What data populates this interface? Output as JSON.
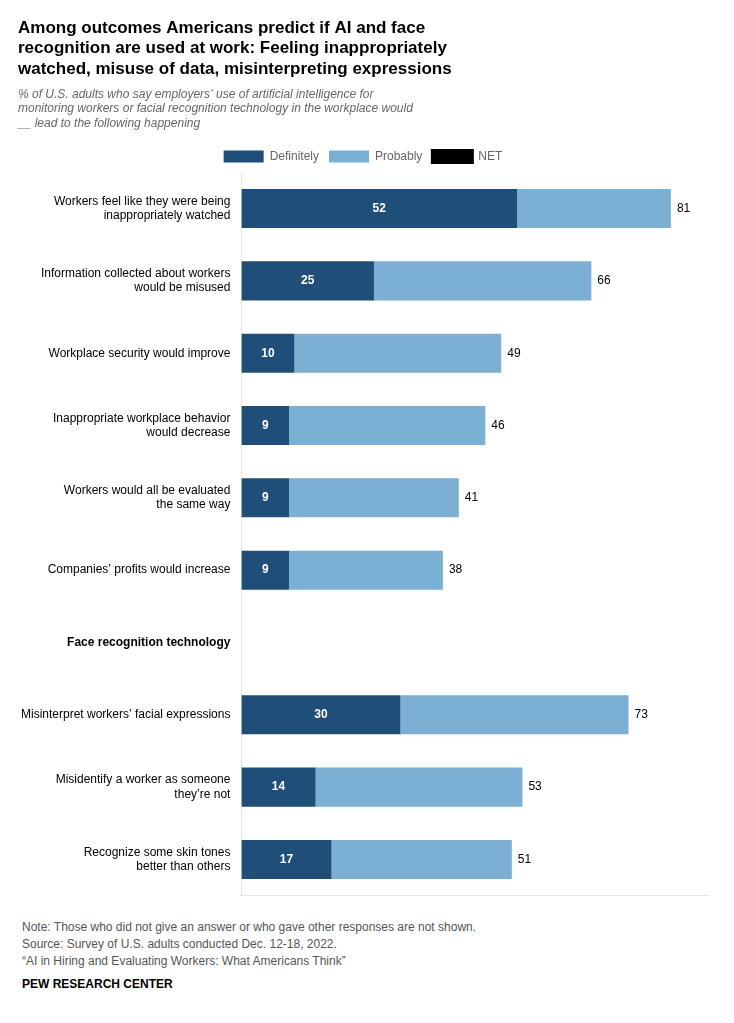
{
  "chart_data": {
    "type": "bar",
    "orientation": "horizontal",
    "stacked": true,
    "title": "Among outcomes Americans predict if AI and face\nrecognition are used at work: Feeling inappropriately\nwatched, misuse of data, misinterpreting expressions",
    "subtitle": "% of U.S. adults who say employers’ use of artificial intelligence for\nmonitoring workers or facial recognition technology in the workplace would\n__ lead to the following happening",
    "categories": [
      "Workers feel like they were being\ninappropriately watched",
      "Information collected about workers\nwould be misused",
      "Workplace security would improve",
      "Inappropriate workplace behavior\nwould decrease",
      "Workers would all be evaluated\nthe same way",
      "Companies’ profits would increase",
      "Face recognition technology",
      "Misinterpret workers’ facial expressions",
      "Misidentify a worker as someone\nthey’re not",
      "Recognize some skin tones\nbetter than others"
    ],
    "series": [
      {
        "name": "Definitely",
        "color": "#1F4E79",
        "values": [
          52,
          25,
          10,
          9,
          9,
          9,
          null,
          30,
          14,
          17
        ],
        "data_labels": true
      },
      {
        "name": "Probably",
        "color": "#7BAFD4",
        "values": [
          29,
          41,
          39,
          37,
          32,
          29,
          null,
          43,
          39,
          34
        ],
        "data_labels": false
      },
      {
        "name": "NET",
        "type": "text",
        "values": [
          81,
          66,
          49,
          46,
          41,
          38,
          null,
          73,
          53,
          51
        ],
        "data_labels": true
      }
    ],
    "xlim": [
      0,
      88
    ],
    "grid": false,
    "legend": "top",
    "tick_labels": "y",
    "annotations": [
      "Note: Those who did not give an answer or who gave other responses are not shown.",
      "Source: Survey of U.S. adults conducted Dec. 12-18, 2022.",
      "“AI in Hiring and Evaluating Workers: What Americans Think”",
      "PEW RESEARCH CENTER"
    ]
  }
}
